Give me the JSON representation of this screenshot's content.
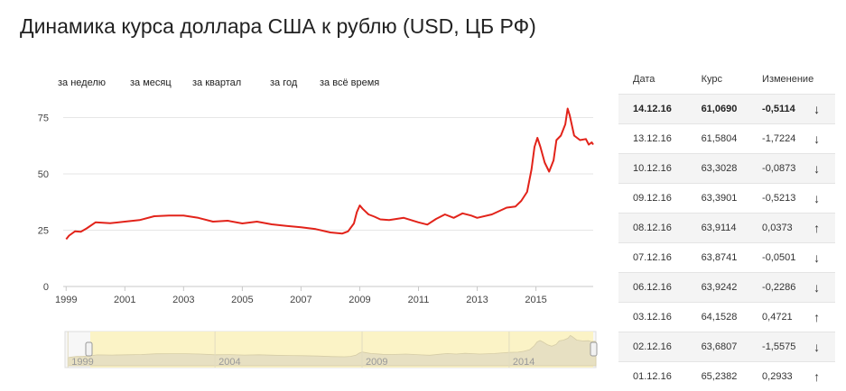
{
  "page": {
    "title": "Динамика курса доллара США к рублю (USD, ЦБ РФ)"
  },
  "period_tabs": [
    {
      "label": "за неделю"
    },
    {
      "label": "за месяц"
    },
    {
      "label": "за квартал"
    },
    {
      "label": "за год"
    },
    {
      "label": "за всё время"
    }
  ],
  "chart_data": {
    "type": "line",
    "title": "",
    "xlabel": "",
    "ylabel": "",
    "xlim": [
      1998.9,
      2016.95
    ],
    "ylim": [
      0,
      80
    ],
    "x_ticks": [
      "1999",
      "2001",
      "2003",
      "2005",
      "2007",
      "2009",
      "2011",
      "2013",
      "2015"
    ],
    "y_ticks": [
      "0",
      "25",
      "50",
      "75"
    ],
    "grid": "horizontal",
    "line_color": "#e2231a",
    "series": [
      {
        "x": [
          1999.0,
          1999.1,
          1999.3,
          1999.5,
          1999.7,
          2000.0,
          2000.5,
          2001.0,
          2001.5,
          2002.0,
          2002.5,
          2003.0,
          2003.5,
          2004.0,
          2004.5,
          2005.0,
          2005.5,
          2006.0,
          2006.5,
          2007.0,
          2007.5,
          2008.0,
          2008.4,
          2008.6,
          2008.8,
          2008.9,
          2009.0,
          2009.1,
          2009.3,
          2009.5,
          2009.7,
          2010.0,
          2010.5,
          2011.0,
          2011.3,
          2011.6,
          2011.9,
          2012.2,
          2012.5,
          2012.8,
          2013.0,
          2013.5,
          2014.0,
          2014.3,
          2014.5,
          2014.7,
          2014.85,
          2014.95,
          2015.05,
          2015.15,
          2015.3,
          2015.45,
          2015.6,
          2015.7,
          2015.85,
          2016.0,
          2016.08,
          2016.15,
          2016.3,
          2016.5,
          2016.7,
          2016.8,
          2016.9,
          2016.95
        ],
        "y": [
          21.0,
          22.6,
          24.5,
          24.3,
          25.8,
          28.5,
          28.1,
          28.8,
          29.5,
          31.2,
          31.5,
          31.5,
          30.5,
          28.8,
          29.2,
          28.0,
          28.8,
          27.6,
          26.9,
          26.3,
          25.5,
          24.0,
          23.5,
          24.5,
          28.0,
          33.0,
          36.0,
          34.5,
          32.0,
          31.0,
          29.8,
          29.5,
          30.5,
          28.5,
          27.5,
          30.0,
          32.0,
          30.5,
          32.5,
          31.5,
          30.5,
          32.0,
          35.0,
          35.5,
          38.0,
          42.0,
          52.0,
          62.0,
          66.0,
          62.0,
          55.0,
          51.0,
          56.0,
          65.0,
          67.0,
          72.0,
          79.0,
          76.0,
          67.0,
          65.0,
          65.5,
          63.0,
          64.0,
          63.0
        ]
      }
    ]
  },
  "navigator": {
    "labels": [
      "1999",
      "2004",
      "2009",
      "2014"
    ]
  },
  "table": {
    "headers": {
      "date": "Дата",
      "rate": "Курс",
      "change": "Изменение"
    },
    "rows": [
      {
        "date": "14.12.16",
        "rate": "61,0690",
        "change": "-0,5114",
        "direction": "down",
        "arrow": "↓"
      },
      {
        "date": "13.12.16",
        "rate": "61,5804",
        "change": "-1,7224",
        "direction": "down",
        "arrow": "↓"
      },
      {
        "date": "10.12.16",
        "rate": "63,3028",
        "change": "-0,0873",
        "direction": "down",
        "arrow": "↓"
      },
      {
        "date": "09.12.16",
        "rate": "63,3901",
        "change": "-0,5213",
        "direction": "down",
        "arrow": "↓"
      },
      {
        "date": "08.12.16",
        "rate": "63,9114",
        "change": "0,0373",
        "direction": "up",
        "arrow": "↑"
      },
      {
        "date": "07.12.16",
        "rate": "63,8741",
        "change": "-0,0501",
        "direction": "down",
        "arrow": "↓"
      },
      {
        "date": "06.12.16",
        "rate": "63,9242",
        "change": "-0,2286",
        "direction": "down",
        "arrow": "↓"
      },
      {
        "date": "03.12.16",
        "rate": "64,1528",
        "change": "0,4721",
        "direction": "up",
        "arrow": "↑"
      },
      {
        "date": "02.12.16",
        "rate": "63,6807",
        "change": "-1,5575",
        "direction": "down",
        "arrow": "↓"
      },
      {
        "date": "01.12.16",
        "rate": "65,2382",
        "change": "0,2933",
        "direction": "up",
        "arrow": "↑"
      }
    ]
  }
}
